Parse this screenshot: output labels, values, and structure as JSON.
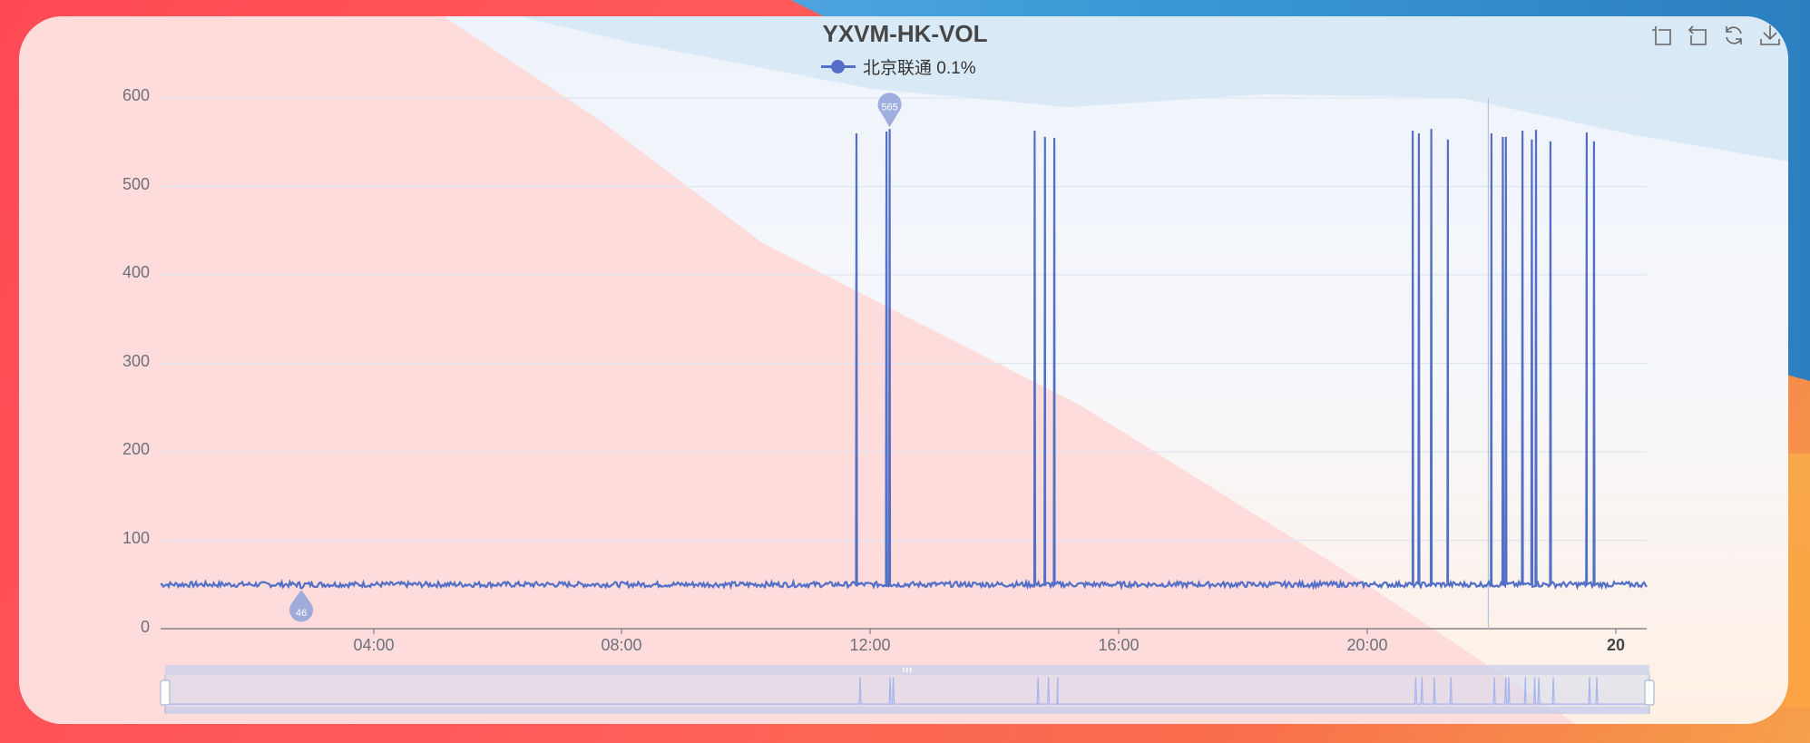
{
  "chart_data": {
    "type": "line",
    "title": "YXVM-HK-VOL",
    "legend": [
      {
        "name": "北京联通 0.1%",
        "color": "#5470c6"
      }
    ],
    "xlabel": "",
    "ylabel": "",
    "ylim": [
      0,
      600
    ],
    "yticks": [
      0,
      100,
      200,
      300,
      400,
      500,
      600
    ],
    "xticks": [
      "04:00",
      "08:00",
      "12:00",
      "16:00",
      "20:00",
      "20"
    ],
    "x_range": [
      "00:34",
      "00:30 (+1 day)"
    ],
    "grid": true,
    "legend_position": "top-center",
    "baseline_value": 50,
    "baseline_noise": [
      46,
      56
    ],
    "series": [
      {
        "name": "北京联通 0.1%",
        "baseline": 50,
        "spikes": [
          {
            "time": "11:46",
            "value": 560
          },
          {
            "time": "12:15",
            "value": 562
          },
          {
            "time": "12:18",
            "value": 565
          },
          {
            "time": "14:38",
            "value": 563
          },
          {
            "time": "14:48",
            "value": 556
          },
          {
            "time": "14:57",
            "value": 555
          },
          {
            "time": "20:43",
            "value": 563
          },
          {
            "time": "20:49",
            "value": 560
          },
          {
            "time": "21:01",
            "value": 565
          },
          {
            "time": "21:17",
            "value": 553
          },
          {
            "time": "21:59",
            "value": 560
          },
          {
            "time": "22:10",
            "value": 556
          },
          {
            "time": "22:13",
            "value": 556
          },
          {
            "time": "22:29",
            "value": 563
          },
          {
            "time": "22:38",
            "value": 553
          },
          {
            "time": "22:42",
            "value": 564
          },
          {
            "time": "22:56",
            "value": 551
          },
          {
            "time": "23:31",
            "value": 561
          },
          {
            "time": "23:38",
            "value": 551
          }
        ]
      }
    ],
    "mark_points": [
      {
        "type": "max",
        "label": "565",
        "time": "12:18",
        "value": 565
      },
      {
        "type": "min",
        "label": "46",
        "time": "02:50",
        "value": 46
      }
    ],
    "cursor_time": "21:56"
  },
  "title": "YXVM-HK-VOL",
  "legend": {
    "label": "北京联通 0.1%"
  },
  "y_axis": {
    "ticks": [
      "600",
      "500",
      "400",
      "300",
      "200",
      "100",
      "0"
    ]
  },
  "x_axis": {
    "ticks": [
      "04:00",
      "08:00",
      "12:00",
      "16:00",
      "20:00",
      "20"
    ]
  },
  "mark_points": {
    "max_label": "565",
    "min_label": "46"
  },
  "toolbox": {
    "items": [
      "zoom-select",
      "zoom-reset",
      "restore",
      "save-as-image"
    ]
  },
  "colors": {
    "series": "#5470c6",
    "axis_text": "#6e7079",
    "title": "#464646"
  }
}
